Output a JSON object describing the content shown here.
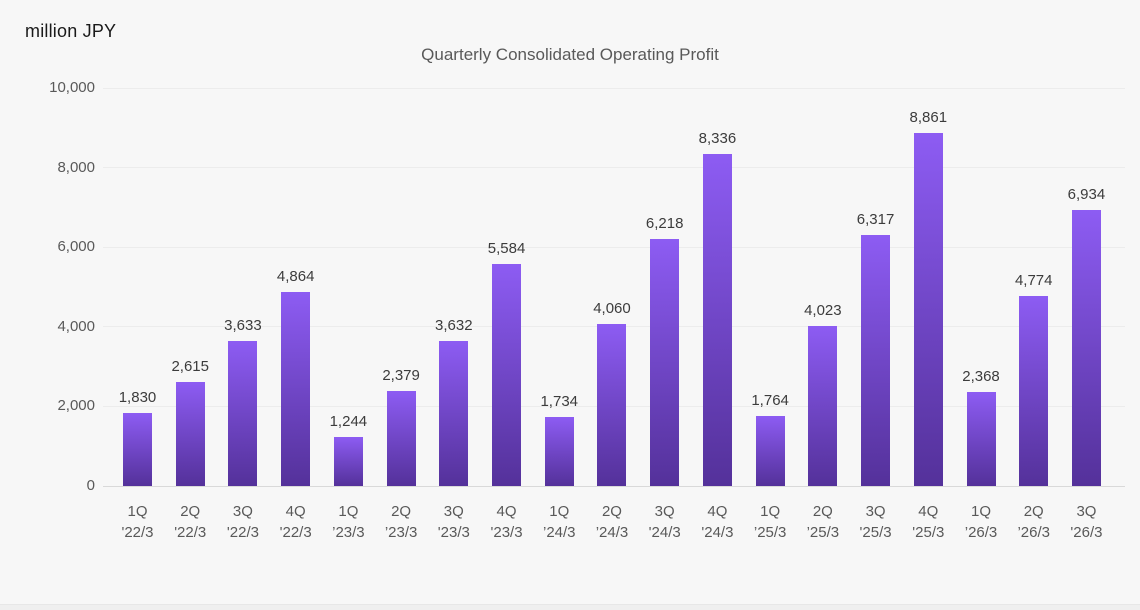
{
  "page": {
    "background_color": "#f7f7f7",
    "footer_strip_color": "#efefef"
  },
  "chart_data": {
    "type": "bar",
    "title": "Quarterly Consolidated Operating Profit",
    "unit_label": "million JPY",
    "categories": [
      {
        "q": "1Q",
        "fy": "'22/3"
      },
      {
        "q": "2Q",
        "fy": "'22/3"
      },
      {
        "q": "3Q",
        "fy": "'22/3"
      },
      {
        "q": "4Q",
        "fy": "'22/3"
      },
      {
        "q": "1Q",
        "fy": "’23/3"
      },
      {
        "q": "2Q",
        "fy": "’23/3"
      },
      {
        "q": "3Q",
        "fy": "'23/3"
      },
      {
        "q": "4Q",
        "fy": "'23/3"
      },
      {
        "q": "1Q",
        "fy": "’24/3"
      },
      {
        "q": "2Q",
        "fy": "’24/3"
      },
      {
        "q": "3Q",
        "fy": "'24/3"
      },
      {
        "q": "4Q",
        "fy": "'24/3"
      },
      {
        "q": "1Q",
        "fy": "’25/3"
      },
      {
        "q": "2Q",
        "fy": "’25/3"
      },
      {
        "q": "3Q",
        "fy": "'25/3"
      },
      {
        "q": "4Q",
        "fy": "'25/3"
      },
      {
        "q": "1Q",
        "fy": "’26/3"
      },
      {
        "q": "2Q",
        "fy": "’26/3"
      },
      {
        "q": "3Q",
        "fy": "'26/3"
      }
    ],
    "values": [
      1830,
      2615,
      3633,
      4864,
      1244,
      2379,
      3632,
      5584,
      1734,
      4060,
      6218,
      8336,
      1764,
      4023,
      6317,
      8861,
      2368,
      4774,
      6934
    ],
    "data_labels": [
      "1,830",
      "2,615",
      "3,633",
      "4,864",
      "1,244",
      "2,379",
      "3,632",
      "5,584",
      "1,734",
      "4,060",
      "6,218",
      "8,336",
      "1,764",
      "4,023",
      "6,317",
      "8,861",
      "2,368",
      "4,774",
      "6,934"
    ],
    "xlabel": "",
    "ylabel": "",
    "ylim": [
      0,
      10000
    ],
    "ytick_interval": 2000,
    "yticks": [
      "0",
      "2,000",
      "4,000",
      "6,000",
      "8,000",
      "10,000"
    ],
    "grid": true,
    "legend_position": "none",
    "bar_gradient_top": "#8d5cf3",
    "bar_gradient_bottom": "#54319a",
    "gridline_color": "#ececec",
    "axis_line_color": "#d9d9d9",
    "text_color": "#595959",
    "value_label_color": "#3c3c3c"
  }
}
